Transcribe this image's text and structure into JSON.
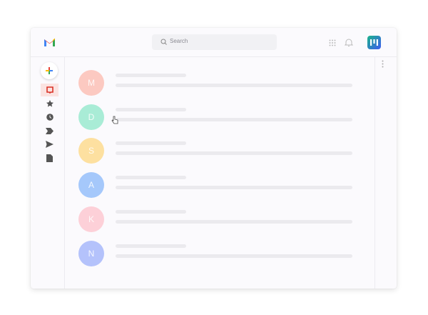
{
  "header": {
    "search_placeholder": "Search",
    "icons": [
      "gmail-logo",
      "search-icon",
      "apps-grid-icon",
      "bell-icon",
      "brand-app-icon"
    ]
  },
  "sidebar": {
    "items": [
      {
        "name": "compose",
        "icon": "plus-icon"
      },
      {
        "name": "inbox",
        "icon": "inbox-icon",
        "active": true
      },
      {
        "name": "starred",
        "icon": "star-icon"
      },
      {
        "name": "snoozed",
        "icon": "clock-icon"
      },
      {
        "name": "important",
        "icon": "label-icon"
      },
      {
        "name": "sent",
        "icon": "send-icon"
      },
      {
        "name": "drafts",
        "icon": "file-icon"
      }
    ]
  },
  "emails": [
    {
      "initial": "M",
      "color": "#fcc9c1"
    },
    {
      "initial": "D",
      "color": "#a9ecd6"
    },
    {
      "initial": "S",
      "color": "#fde0a0"
    },
    {
      "initial": "A",
      "color": "#a5c8fb"
    },
    {
      "initial": "K",
      "color": "#fdd0d8"
    },
    {
      "initial": "N",
      "color": "#b4c2fb"
    }
  ],
  "colors": {
    "accent": "#d93025",
    "active_bg": "#fbe3e1"
  }
}
